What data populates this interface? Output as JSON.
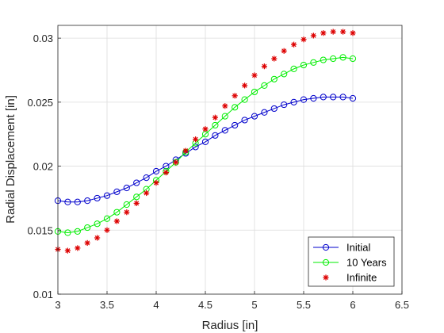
{
  "chart_data": {
    "type": "line",
    "title": "",
    "xlabel": "Radius [in]",
    "ylabel": "Radial Displacement [in]",
    "xlim": [
      3,
      6.5
    ],
    "ylim": [
      0.01,
      0.031
    ],
    "xticks": [
      3,
      3.5,
      4,
      4.5,
      5,
      5.5,
      6,
      6.5
    ],
    "xtick_labels": [
      "3",
      "3.5",
      "4",
      "4.5",
      "5",
      "5.5",
      "6",
      "6.5"
    ],
    "yticks": [
      0.01,
      0.015,
      0.02,
      0.025,
      0.03
    ],
    "ytick_labels": [
      "0.01",
      "0.015",
      "0.02",
      "0.025",
      "0.03"
    ],
    "grid": true,
    "legend_position": "bottom-right",
    "x": [
      3.0,
      3.1,
      3.2,
      3.3,
      3.4,
      3.5,
      3.6,
      3.7,
      3.8,
      3.9,
      4.0,
      4.1,
      4.2,
      4.3,
      4.4,
      4.5,
      4.6,
      4.7,
      4.8,
      4.9,
      5.0,
      5.1,
      5.2,
      5.3,
      5.4,
      5.5,
      5.6,
      5.7,
      5.8,
      5.9,
      6.0
    ],
    "series": [
      {
        "name": "Initial",
        "color": "#0000cc",
        "style": "line-circle",
        "values": [
          0.0173,
          0.0172,
          0.0172,
          0.0173,
          0.0175,
          0.0177,
          0.018,
          0.0183,
          0.0187,
          0.0191,
          0.0196,
          0.02,
          0.0205,
          0.021,
          0.0215,
          0.0219,
          0.0224,
          0.0228,
          0.0232,
          0.0236,
          0.0239,
          0.0242,
          0.0245,
          0.0248,
          0.025,
          0.0252,
          0.0253,
          0.0254,
          0.0254,
          0.0254,
          0.0253
        ]
      },
      {
        "name": "10 Years",
        "color": "#00ee00",
        "style": "line-circle",
        "values": [
          0.0149,
          0.0148,
          0.0149,
          0.0152,
          0.0155,
          0.0159,
          0.0164,
          0.017,
          0.0176,
          0.0182,
          0.0189,
          0.0196,
          0.0203,
          0.0211,
          0.0218,
          0.0225,
          0.0232,
          0.0239,
          0.0246,
          0.0252,
          0.0258,
          0.0263,
          0.0268,
          0.0272,
          0.0276,
          0.0279,
          0.0281,
          0.0283,
          0.0284,
          0.0285,
          0.0284
        ]
      },
      {
        "name": "Infinite",
        "color": "#dd0000",
        "style": "marker-star",
        "values": [
          0.0135,
          0.0134,
          0.0136,
          0.014,
          0.0144,
          0.015,
          0.0157,
          0.0164,
          0.0171,
          0.0179,
          0.0187,
          0.0195,
          0.0203,
          0.0212,
          0.0221,
          0.0229,
          0.0238,
          0.0247,
          0.0255,
          0.0263,
          0.0271,
          0.0278,
          0.0284,
          0.029,
          0.0295,
          0.0299,
          0.0302,
          0.0304,
          0.0305,
          0.0305,
          0.0304
        ]
      }
    ]
  }
}
